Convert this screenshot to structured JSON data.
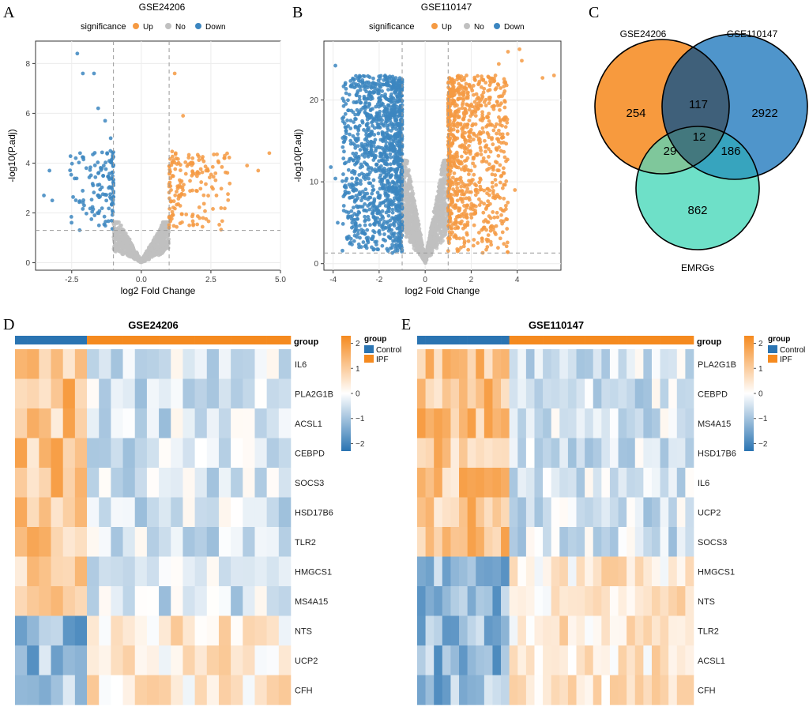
{
  "colors": {
    "up": "#F59A43",
    "no": "#C0C0C0",
    "down": "#3C86C0",
    "venn_a": "#F79A3E",
    "venn_b": "#4F95CB",
    "venn_c": "#6EE0C8",
    "ab": "#3F607A",
    "ac": "#7FC79B",
    "bc": "#37A4BE",
    "abc": "#43787E",
    "control": "#2A74B2",
    "ipf": "#F58A1F"
  },
  "panels": {
    "A": "A",
    "B": "B",
    "C": "C",
    "D": "D",
    "E": "E"
  },
  "chart_data": [
    {
      "type": "scatter",
      "panel": "A",
      "title": "GSE24206",
      "xlabel": "log2 Fold Change",
      "ylabel": "-log10(P.adj)",
      "legend_title": "significance",
      "legend": [
        "Up",
        "No",
        "Down"
      ],
      "xlim": [
        -3.8,
        5.0
      ],
      "ylim": [
        -0.3,
        8.9
      ],
      "xticks": [
        -2.5,
        0.0,
        2.5,
        5.0
      ],
      "xtick_labels": [
        "-2.5",
        "0.0",
        "2.5",
        "5.0"
      ],
      "yticks": [
        0,
        2,
        4,
        6,
        8
      ],
      "ytick_labels": [
        "0",
        "2",
        "4",
        "6",
        "8"
      ],
      "fc_cutoff": [
        -1,
        1
      ],
      "p_cutoff": 1.3,
      "gen": {
        "seed": 7,
        "n_no": 900,
        "n_up": 170,
        "n_down": 130,
        "amp": 1.55,
        "up_max": 3.2,
        "down_min": -2.6,
        "sig_ymax": 4.5
      },
      "notable_points": [
        {
          "x": -2.3,
          "y": 8.4,
          "group": "Down"
        },
        {
          "x": -2.1,
          "y": 7.6,
          "group": "Down"
        },
        {
          "x": -1.7,
          "y": 7.6,
          "group": "Down"
        },
        {
          "x": -1.55,
          "y": 6.2,
          "group": "Down"
        },
        {
          "x": -1.3,
          "y": 5.7,
          "group": "Down"
        },
        {
          "x": -1.1,
          "y": 5.0,
          "group": "Down"
        },
        {
          "x": -3.3,
          "y": 3.7,
          "group": "Down"
        },
        {
          "x": -3.5,
          "y": 2.7,
          "group": "Down"
        },
        {
          "x": -3.2,
          "y": 2.5,
          "group": "Down"
        },
        {
          "x": -2.2,
          "y": 4.4,
          "group": "Down"
        },
        {
          "x": 1.2,
          "y": 7.6,
          "group": "Up"
        },
        {
          "x": 1.5,
          "y": 5.9,
          "group": "Up"
        },
        {
          "x": 4.6,
          "y": 4.4,
          "group": "Up"
        },
        {
          "x": 4.2,
          "y": 3.7,
          "group": "Up"
        },
        {
          "x": 3.8,
          "y": 3.9,
          "group": "Up"
        },
        {
          "x": 2.7,
          "y": 2.7,
          "group": "Up"
        },
        {
          "x": 3.0,
          "y": 4.3,
          "group": "Up"
        }
      ]
    },
    {
      "type": "scatter",
      "panel": "B",
      "title": "GSE110147",
      "xlabel": "log2 Fold Change",
      "ylabel": "-log10(P.adj)",
      "legend_title": "significance",
      "legend": [
        "Up",
        "No",
        "Down"
      ],
      "xlim": [
        -4.4,
        5.9
      ],
      "ylim": [
        -0.8,
        27.2
      ],
      "xticks": [
        -4,
        -2,
        0,
        2,
        4
      ],
      "xtick_labels": [
        "-4",
        "-2",
        "0",
        "2",
        "4"
      ],
      "yticks": [
        0,
        10,
        20
      ],
      "ytick_labels": [
        "0",
        "10",
        "20"
      ],
      "fc_cutoff": [
        -1,
        1
      ],
      "p_cutoff": 1.3,
      "gen": {
        "seed": 11,
        "n_no": 1300,
        "n_up": 850,
        "n_down": 1300,
        "amp": 12,
        "up_max": 3.6,
        "down_min": -3.6,
        "sig_ymax": 23
      },
      "notable_points": [
        {
          "x": 4.1,
          "y": 26.2,
          "group": "Up"
        },
        {
          "x": 3.6,
          "y": 25.9,
          "group": "Up"
        },
        {
          "x": 5.6,
          "y": 23.0,
          "group": "Up"
        },
        {
          "x": 5.1,
          "y": 22.7,
          "group": "Up"
        },
        {
          "x": 4.2,
          "y": 24.8,
          "group": "Up"
        },
        {
          "x": 3.2,
          "y": 24.4,
          "group": "Up"
        },
        {
          "x": 3.9,
          "y": 9.0,
          "group": "Up"
        },
        {
          "x": -3.9,
          "y": 24.2,
          "group": "Down"
        },
        {
          "x": -4.1,
          "y": 11.8,
          "group": "Down"
        },
        {
          "x": -3.9,
          "y": 10.4,
          "group": "Down"
        },
        {
          "x": -3.8,
          "y": 5.0,
          "group": "Down"
        },
        {
          "x": -3.4,
          "y": 3.2,
          "group": "Down"
        },
        {
          "x": -2.5,
          "y": 2.8,
          "group": "Down"
        }
      ]
    },
    {
      "type": "venn",
      "panel": "C",
      "sets": [
        "GSE24206",
        "GSE110147",
        "EMRGs"
      ],
      "regions": {
        "a_only": "254",
        "b_only": "2922",
        "c_only": "862",
        "ab": "117",
        "ac": "29",
        "bc": "186",
        "abc": "12"
      }
    },
    {
      "type": "heatmap",
      "panel": "D",
      "title": "GSE24206",
      "annotation_label": "group",
      "legend_group_title": "group",
      "legend_groups": [
        "Control",
        "IPF"
      ],
      "scale_ticks": [
        2,
        1,
        0,
        -1,
        -2
      ],
      "scale_labels": [
        "2",
        "1",
        "0",
        "−1",
        "−2"
      ],
      "rows": [
        "IL6",
        "PLA2G1B",
        "ACSL1",
        "CEBPD",
        "SOCS3",
        "HSD17B6",
        "TLR2",
        "HMGCS1",
        "MS4A15",
        "NTS",
        "UCP2",
        "CFH"
      ],
      "n_control": 6,
      "n_ipf": 17,
      "control_sign": [
        1,
        1,
        1,
        1,
        1,
        1,
        1,
        1,
        1,
        -1,
        -1,
        -1
      ],
      "seed": 5
    },
    {
      "type": "heatmap",
      "panel": "E",
      "title": "GSE110147",
      "annotation_label": "group",
      "legend_group_title": "group",
      "legend_groups": [
        "Control",
        "IPF"
      ],
      "scale_ticks": [
        2,
        1,
        0,
        -1,
        -2
      ],
      "scale_labels": [
        "2",
        "1",
        "0",
        "−1",
        "−2"
      ],
      "rows": [
        "PLA2G1B",
        "CEBPD",
        "MS4A15",
        "HSD17B6",
        "IL6",
        "UCP2",
        "SOCS3",
        "HMGCS1",
        "NTS",
        "TLR2",
        "ACSL1",
        "CFH"
      ],
      "n_control": 11,
      "n_ipf": 22,
      "control_sign": [
        1,
        1,
        1,
        1,
        1,
        1,
        1,
        -1,
        -1,
        -1,
        -1,
        -1
      ],
      "seed": 9
    }
  ]
}
